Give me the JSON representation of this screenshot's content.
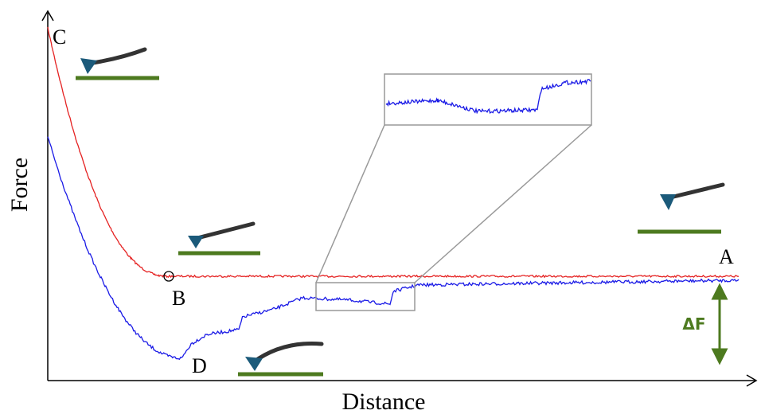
{
  "axes": {
    "y_label": "Force",
    "x_label": "Distance"
  },
  "points": [
    {
      "label": "C"
    },
    {
      "label": "B"
    },
    {
      "label": "A"
    },
    {
      "label": "D"
    }
  ],
  "delta_label": "ΔF"
}
